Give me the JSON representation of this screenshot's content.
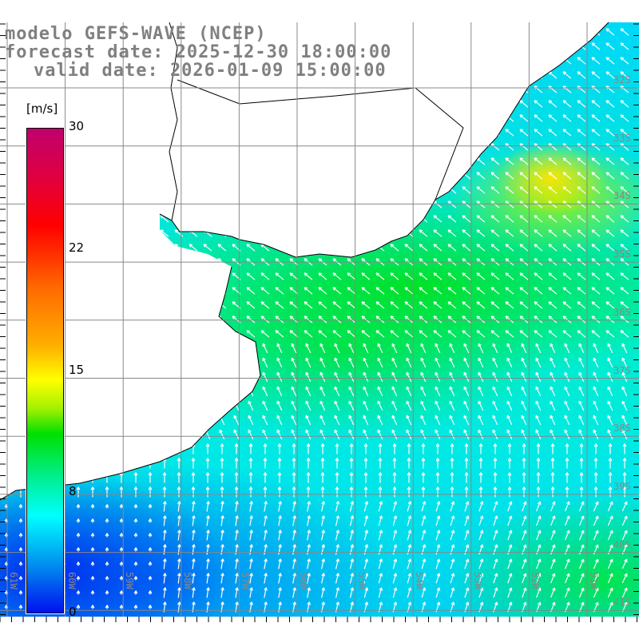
{
  "title": {
    "line1": "modelo GEFS-WAVE (NCEP)",
    "line2": "forecast date: 2025-12-30 18:00:00",
    "line3": "valid date: 2026-01-09 15:00:00"
  },
  "colorbar": {
    "unit": "[m/s]",
    "ticks": [
      "30",
      "22",
      "15",
      "8",
      "0"
    ],
    "colors": [
      "#c0006e",
      "#ff0000",
      "#ffb000",
      "#ffff00",
      "#00e000",
      "#00ffff",
      "#0010f0"
    ]
  },
  "map": {
    "lat_labels": [
      "32S",
      "33S",
      "34S",
      "35S",
      "36S",
      "37S",
      "38S",
      "39S",
      "40S",
      "41S"
    ],
    "lon_labels": [
      "61W",
      "60W",
      "59W",
      "58W",
      "57W",
      "56W",
      "55W",
      "54W",
      "53W",
      "52W",
      "51W"
    ],
    "land_color": "#ffffff",
    "grid_color": "#888888",
    "arrow_icon": "wind-arrow-icon"
  }
}
